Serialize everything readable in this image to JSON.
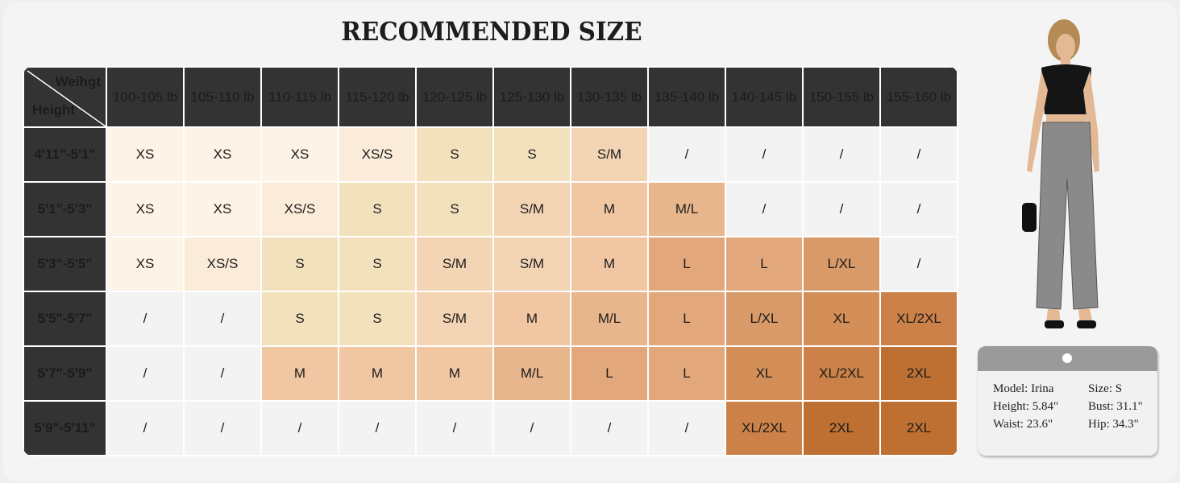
{
  "title": "RECOMMENDED SIZE",
  "corner": {
    "weight_label": "Weihgt",
    "height_label": "Height"
  },
  "columns": [
    "100-105 lb",
    "105-110 lb",
    "110-115 lb",
    "115-120 lb",
    "120-125 lb",
    "125-130 lb",
    "130-135 lb",
    "135-140 lb",
    "140-145 lb",
    "150-155 lb",
    "155-160 lb"
  ],
  "rows": [
    {
      "height": "4'11\"-5'1\"",
      "sizes": [
        "XS",
        "XS",
        "XS",
        "XS/S",
        "S",
        "S",
        "S/M",
        "/",
        "/",
        "/",
        "/"
      ]
    },
    {
      "height": "5'1\"-5'3\"",
      "sizes": [
        "XS",
        "XS",
        "XS/S",
        "S",
        "S",
        "S/M",
        "M",
        "M/L",
        "/",
        "/",
        "/"
      ]
    },
    {
      "height": "5'3\"-5'5\"",
      "sizes": [
        "XS",
        "XS/S",
        "S",
        "S",
        "S/M",
        "S/M",
        "M",
        "L",
        "L",
        "L/XL",
        "/"
      ]
    },
    {
      "height": "5'5\"-5'7\"",
      "sizes": [
        "/",
        "/",
        "S",
        "S",
        "S/M",
        "M",
        "M/L",
        "L",
        "L/XL",
        "XL",
        "XL/2XL"
      ]
    },
    {
      "height": "5'7\"-5'9\"",
      "sizes": [
        "/",
        "/",
        "M",
        "M",
        "M",
        "M/L",
        "L",
        "L",
        "XL",
        "XL/2XL",
        "2XL"
      ]
    },
    {
      "height": "5'9\"-5'11\"",
      "sizes": [
        "/",
        "/",
        "/",
        "/",
        "/",
        "/",
        "/",
        "/",
        "XL/2XL",
        "2XL",
        "2XL"
      ]
    }
  ],
  "size_colors": {
    "XS": "#fdf3e6",
    "XS/S": "#fbecd9",
    "S": "#f3e1be",
    "S/M": "#f3d4b5",
    "M": "#f0c7a2",
    "M/L": "#e8b68c",
    "L": "#e2a87c",
    "L/XL": "#d89a68",
    "XL": "#d48f58",
    "XL/2XL": "#cc8148",
    "2XL": "#bd7032",
    "/": "#f3f3f3"
  },
  "model_tag": {
    "model": "Model: Irina",
    "size": "Size: S",
    "height": "Height: 5.84\"",
    "bust": "Bust: 31.1\"",
    "waist": "Waist: 23.6\"",
    "hip": "Hip: 34.3\""
  }
}
